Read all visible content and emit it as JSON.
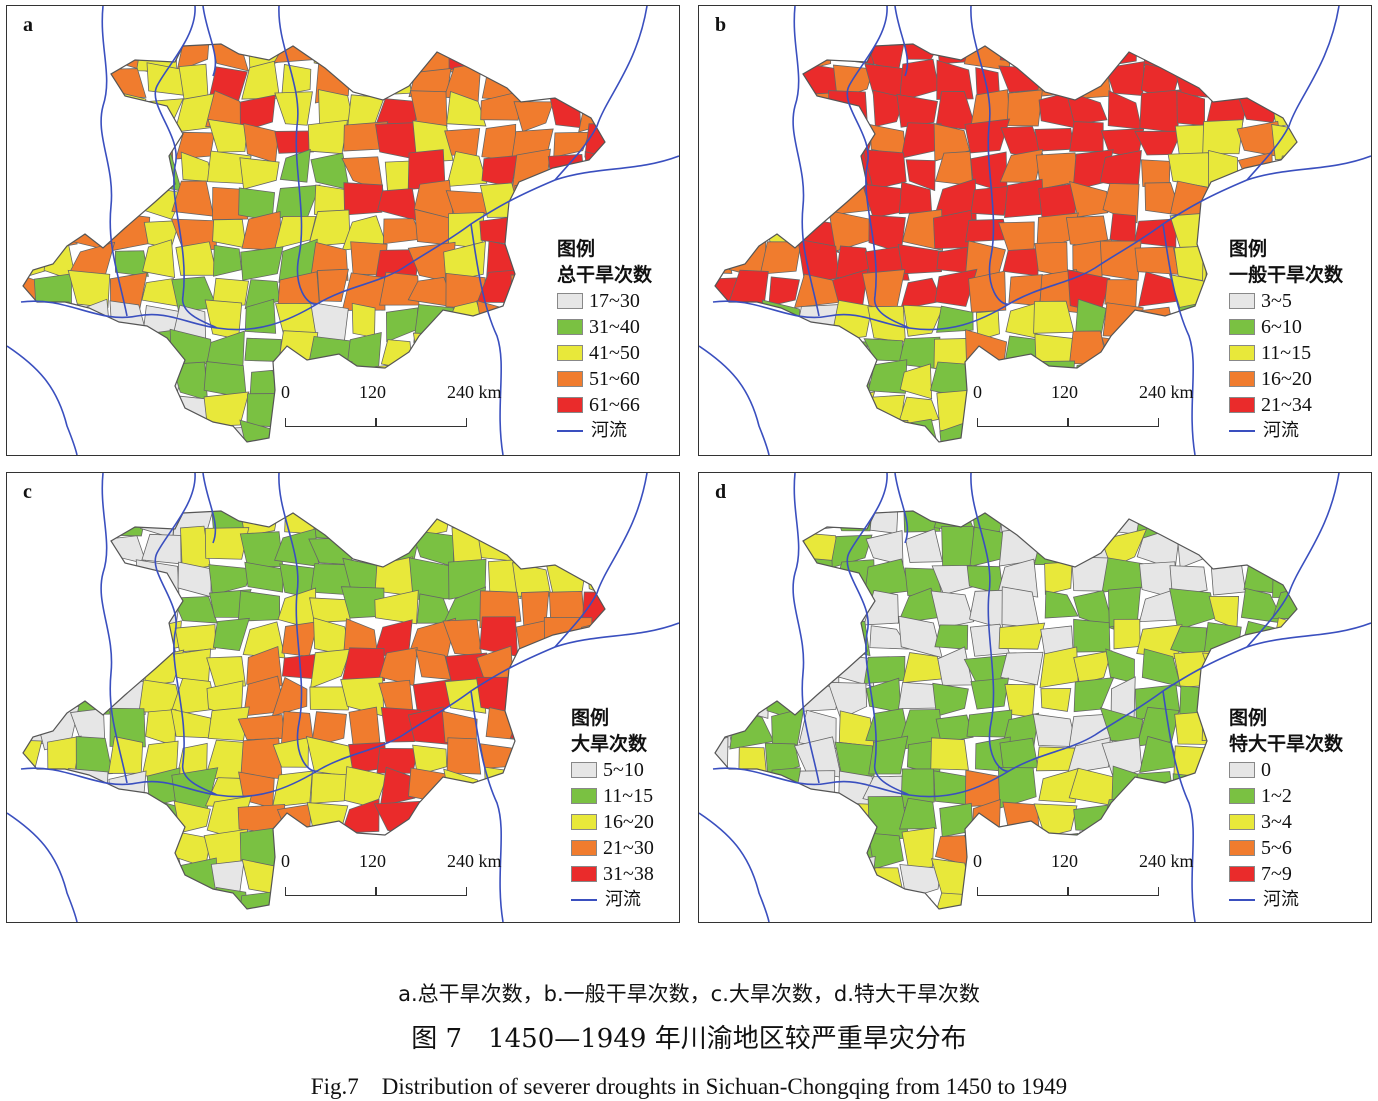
{
  "panels": [
    {
      "letter": "a",
      "legend_title": "图例",
      "legend_sub": "总干旱次数",
      "classes": [
        {
          "label": "17~30",
          "color": "#e6e6e6"
        },
        {
          "label": "31~40",
          "color": "#7ac142"
        },
        {
          "label": "41~50",
          "color": "#e8e83a"
        },
        {
          "label": "51~60",
          "color": "#f07c2e"
        },
        {
          "label": "61~66",
          "color": "#ea2b2b"
        }
      ],
      "river_label": "河流",
      "scale": {
        "t0": "0",
        "t1": "120",
        "t2": "240 km"
      }
    },
    {
      "letter": "b",
      "legend_title": "图例",
      "legend_sub": "一般干旱次数",
      "classes": [
        {
          "label": "3~5",
          "color": "#e6e6e6"
        },
        {
          "label": "6~10",
          "color": "#7ac142"
        },
        {
          "label": "11~15",
          "color": "#e8e83a"
        },
        {
          "label": "16~20",
          "color": "#f07c2e"
        },
        {
          "label": "21~34",
          "color": "#ea2b2b"
        }
      ],
      "river_label": "河流",
      "scale": {
        "t0": "0",
        "t1": "120",
        "t2": "240 km"
      }
    },
    {
      "letter": "c",
      "legend_title": "图例",
      "legend_sub": "大旱次数",
      "classes": [
        {
          "label": "5~10",
          "color": "#e6e6e6"
        },
        {
          "label": "11~15",
          "color": "#7ac142"
        },
        {
          "label": "16~20",
          "color": "#e8e83a"
        },
        {
          "label": "21~30",
          "color": "#f07c2e"
        },
        {
          "label": "31~38",
          "color": "#ea2b2b"
        }
      ],
      "river_label": "河流",
      "scale": {
        "t0": "0",
        "t1": "120",
        "t2": "240 km"
      }
    },
    {
      "letter": "d",
      "legend_title": "图例",
      "legend_sub": "特大干旱次数",
      "classes": [
        {
          "label": "0",
          "color": "#e6e6e6"
        },
        {
          "label": "1~2",
          "color": "#7ac142"
        },
        {
          "label": "3~4",
          "color": "#e8e83a"
        },
        {
          "label": "5~6",
          "color": "#f07c2e"
        },
        {
          "label": "7~9",
          "color": "#ea2b2b"
        }
      ],
      "river_label": "河流",
      "scale": {
        "t0": "0",
        "t1": "120",
        "t2": "240 km"
      }
    }
  ],
  "colors": {
    "river": "#3a4fbf",
    "boundary": "#666666"
  },
  "caption": {
    "subtitle": "a.总干旱次数，b.一般干旱次数，c.大旱次数，d.特大干旱次数",
    "title_cn": "图 7　1450—1949 年川渝地区较严重旱灾分布",
    "title_en": "Fig.7　Distribution of severer droughts in Sichuan-Chongqing from 1450 to 1949"
  }
}
